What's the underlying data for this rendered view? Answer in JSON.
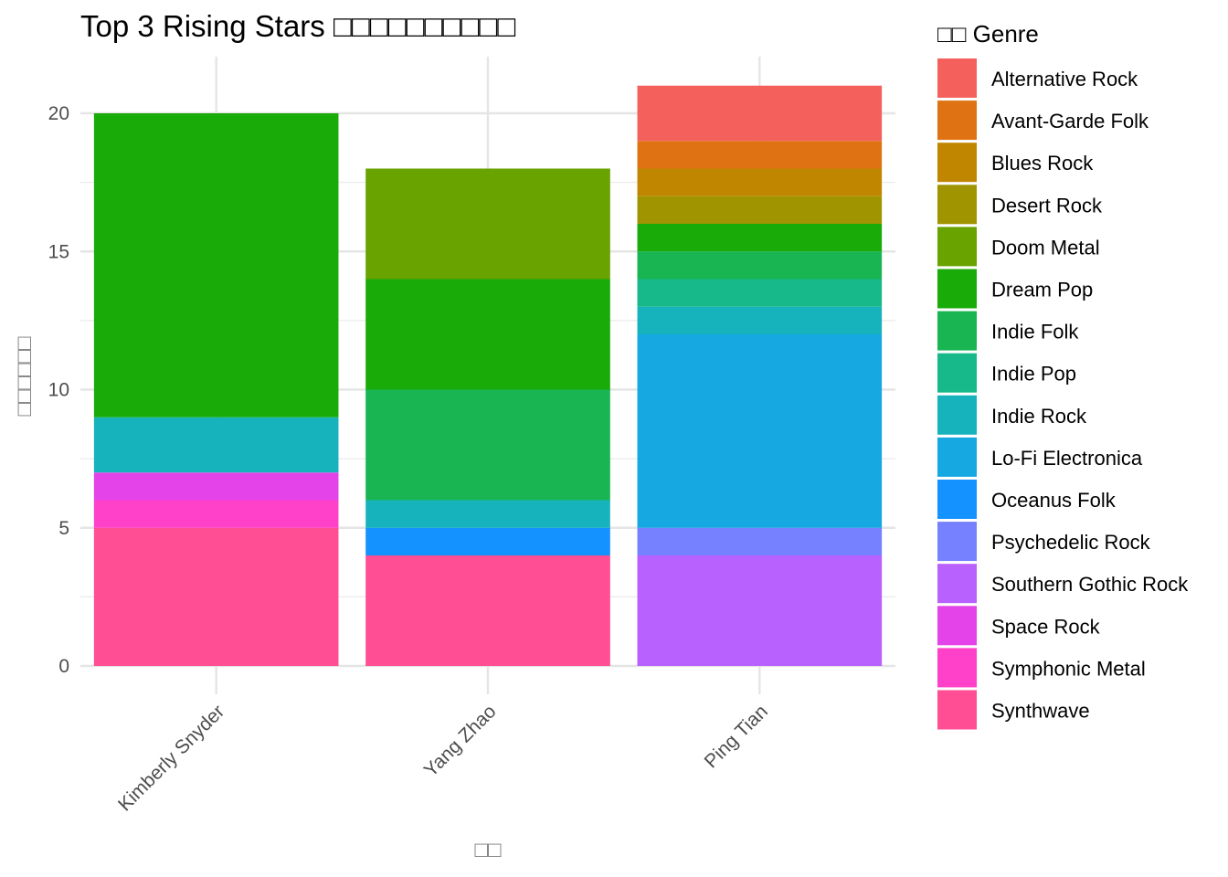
{
  "chart_data": {
    "type": "bar",
    "stacked": true,
    "title": "Top 3 Rising Stars □□□□□□□□□□",
    "xlabel": "□□",
    "ylabel": "□□□□□□",
    "ylim": [
      0,
      22
    ],
    "yticks": [
      0,
      5,
      10,
      15,
      20
    ],
    "grid": true,
    "legend_position": "right",
    "legend_title": "□□ Genre",
    "categories": [
      "Kimberly Snyder",
      "Yang Zhao",
      "Ping Tian"
    ],
    "series": [
      {
        "name": "Synthwave",
        "color": "#FF4E94",
        "values": [
          5,
          4,
          0
        ]
      },
      {
        "name": "Symphonic Metal",
        "color": "#FF40C9",
        "values": [
          1,
          0,
          0
        ]
      },
      {
        "name": "Space Rock",
        "color": "#E543EA",
        "values": [
          1,
          0,
          0
        ]
      },
      {
        "name": "Southern Gothic Rock",
        "color": "#B961FF",
        "values": [
          0,
          0,
          4
        ]
      },
      {
        "name": "Psychedelic Rock",
        "color": "#7681FF",
        "values": [
          0,
          0,
          1
        ]
      },
      {
        "name": "Oceanus Folk",
        "color": "#1492FF",
        "values": [
          0,
          1,
          0
        ]
      },
      {
        "name": "Lo-Fi Electronica",
        "color": "#16A8E0",
        "values": [
          0,
          0,
          7
        ]
      },
      {
        "name": "Indie Rock",
        "color": "#17B3BD",
        "values": [
          2,
          1,
          1
        ]
      },
      {
        "name": "Indie Pop",
        "color": "#17B88A",
        "values": [
          0,
          0,
          1
        ]
      },
      {
        "name": "Indie Folk",
        "color": "#19B553",
        "values": [
          0,
          4,
          1
        ]
      },
      {
        "name": "Dream Pop",
        "color": "#19AB08",
        "values": [
          11,
          4,
          1
        ]
      },
      {
        "name": "Doom Metal",
        "color": "#68A300",
        "values": [
          0,
          4,
          0
        ]
      },
      {
        "name": "Desert Rock",
        "color": "#A09400",
        "values": [
          0,
          0,
          1
        ]
      },
      {
        "name": "Blues Rock",
        "color": "#C08600",
        "values": [
          0,
          0,
          1
        ]
      },
      {
        "name": "Avant-Garde Folk",
        "color": "#DF7314",
        "values": [
          0,
          0,
          1
        ]
      },
      {
        "name": "Alternative Rock",
        "color": "#F4605C",
        "values": [
          0,
          0,
          2
        ]
      }
    ]
  }
}
